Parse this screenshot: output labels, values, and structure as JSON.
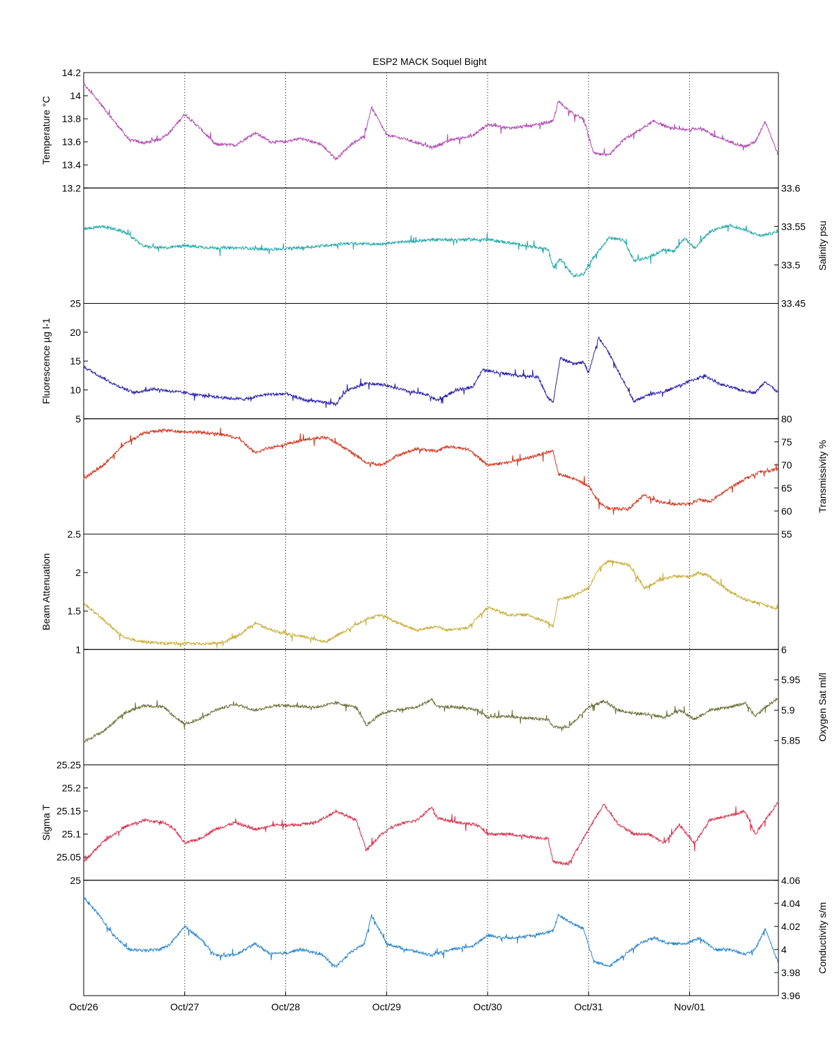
{
  "title": "ESP2 MACK  Soquel Bight",
  "x_axis": {
    "tick_labels": [
      "Oct/26",
      "Oct/27",
      "Oct/28",
      "Oct/29",
      "Oct/30",
      "Oct/31",
      "Nov/01"
    ],
    "range_days": [
      0,
      6.88
    ]
  },
  "chart_data": [
    {
      "type": "line",
      "name": "temperature",
      "color": "#B04AB0",
      "ylabel": "Temperature °C",
      "axis_side": "left",
      "ylim": [
        13.2,
        14.2
      ],
      "yticks": [
        "13.2",
        "13.4",
        "13.6",
        "13.8",
        "14",
        "14.2"
      ],
      "x": [
        0,
        0.15,
        0.3,
        0.45,
        0.6,
        0.75,
        0.85,
        1.0,
        1.15,
        1.3,
        1.5,
        1.7,
        1.85,
        2.0,
        2.15,
        2.35,
        2.5,
        2.65,
        2.78,
        2.85,
        3.0,
        3.2,
        3.45,
        3.65,
        3.85,
        4.0,
        4.2,
        4.45,
        4.65,
        4.7,
        4.85,
        4.95,
        5.05,
        5.2,
        5.35,
        5.5,
        5.65,
        5.8,
        5.95,
        6.1,
        6.25,
        6.4,
        6.55,
        6.65,
        6.75,
        6.88
      ],
      "y": [
        14.1,
        13.95,
        13.78,
        13.62,
        13.59,
        13.62,
        13.68,
        13.84,
        13.72,
        13.58,
        13.57,
        13.68,
        13.6,
        13.6,
        13.63,
        13.58,
        13.45,
        13.58,
        13.65,
        13.9,
        13.66,
        13.62,
        13.55,
        13.62,
        13.65,
        13.75,
        13.72,
        13.74,
        13.78,
        13.95,
        13.84,
        13.8,
        13.5,
        13.48,
        13.62,
        13.7,
        13.78,
        13.72,
        13.7,
        13.72,
        13.65,
        13.6,
        13.56,
        13.6,
        13.78,
        13.48
      ]
    },
    {
      "type": "line",
      "name": "salinity",
      "color": "#20AAA8",
      "ylabel": "Salinity psu",
      "axis_side": "right",
      "ylim": [
        33.45,
        33.6
      ],
      "yticks": [
        "33.45",
        "33.5",
        "33.55",
        "33.6"
      ],
      "x": [
        0,
        0.2,
        0.4,
        0.6,
        0.8,
        1.0,
        1.3,
        1.6,
        1.8,
        2.0,
        2.3,
        2.6,
        2.9,
        3.2,
        3.5,
        3.8,
        4.0,
        4.3,
        4.6,
        4.65,
        4.72,
        4.85,
        4.95,
        5.05,
        5.2,
        5.35,
        5.45,
        5.6,
        5.75,
        5.85,
        5.95,
        6.05,
        6.2,
        6.4,
        6.55,
        6.7,
        6.88
      ],
      "y": [
        33.547,
        33.55,
        33.543,
        33.524,
        33.522,
        33.525,
        33.522,
        33.522,
        33.52,
        33.521,
        33.524,
        33.528,
        33.527,
        33.53,
        33.533,
        33.533,
        33.533,
        33.527,
        33.52,
        33.496,
        33.508,
        33.486,
        33.488,
        33.51,
        33.535,
        33.532,
        33.505,
        33.51,
        33.52,
        33.518,
        33.535,
        33.522,
        33.543,
        33.552,
        33.545,
        33.538,
        33.543
      ]
    },
    {
      "type": "line",
      "name": "fluorescence",
      "color": "#2A1FA8",
      "ylabel": "Fluorescence µg l-1",
      "axis_side": "left",
      "ylim": [
        5,
        25
      ],
      "yticks": [
        "5",
        "10",
        "15",
        "20",
        "25"
      ],
      "x": [
        0,
        0.15,
        0.3,
        0.5,
        0.7,
        0.85,
        1.0,
        1.2,
        1.4,
        1.6,
        1.8,
        2.0,
        2.2,
        2.4,
        2.5,
        2.6,
        2.8,
        3.0,
        3.2,
        3.4,
        3.5,
        3.7,
        3.85,
        3.95,
        4.1,
        4.3,
        4.5,
        4.6,
        4.65,
        4.72,
        4.85,
        4.95,
        5.0,
        5.1,
        5.2,
        5.3,
        5.45,
        5.6,
        5.8,
        6.0,
        6.15,
        6.3,
        6.5,
        6.65,
        6.75,
        6.88
      ],
      "y": [
        14,
        12.5,
        11,
        9.5,
        10.2,
        9.8,
        9.5,
        9,
        8.6,
        8.4,
        9.2,
        9.3,
        8.2,
        7.8,
        7.5,
        9.8,
        11.2,
        10.8,
        9.8,
        9.2,
        8.2,
        10,
        10.5,
        13.5,
        13,
        12.5,
        12.2,
        8.5,
        8,
        15.5,
        14.5,
        14.8,
        13,
        19,
        16.5,
        13,
        8,
        9.2,
        10,
        11.5,
        12.5,
        11,
        10,
        9.5,
        11.5,
        9.5
      ]
    },
    {
      "type": "line",
      "name": "transmissivity",
      "color": "#D2361E",
      "ylabel": "Transmissivity %",
      "axis_side": "right",
      "ylim": [
        55,
        80
      ],
      "yticks": [
        "55",
        "60",
        "65",
        "70",
        "75",
        "80"
      ],
      "x": [
        0,
        0.2,
        0.4,
        0.6,
        0.8,
        1.0,
        1.2,
        1.4,
        1.55,
        1.7,
        1.8,
        2.0,
        2.2,
        2.4,
        2.6,
        2.8,
        2.95,
        3.1,
        3.3,
        3.5,
        3.6,
        3.8,
        4.0,
        4.2,
        4.4,
        4.6,
        4.65,
        4.7,
        4.85,
        5.0,
        5.1,
        5.2,
        5.4,
        5.55,
        5.7,
        5.85,
        6.0,
        6.1,
        6.2,
        6.4,
        6.55,
        6.7,
        6.88
      ],
      "y": [
        67,
        70,
        74.5,
        77,
        77.5,
        77.2,
        77,
        76.5,
        75.5,
        72.5,
        73.5,
        74.5,
        75.5,
        76,
        73.5,
        70.5,
        70,
        72,
        73.5,
        73,
        74,
        73.5,
        70,
        70.5,
        71.5,
        72.8,
        73,
        68,
        67,
        65.5,
        62,
        60.5,
        60.5,
        63.5,
        62,
        61.5,
        61.5,
        62.5,
        62,
        65,
        67,
        68.5,
        69
      ]
    },
    {
      "type": "line",
      "name": "beam_attenuation",
      "color": "#C9AE3A",
      "ylabel": "Beam Attenuation",
      "axis_side": "left",
      "ylim": [
        1,
        2.5
      ],
      "yticks": [
        "1",
        "1.5",
        "2",
        "2.5"
      ],
      "x": [
        0,
        0.2,
        0.4,
        0.6,
        0.8,
        1.0,
        1.2,
        1.4,
        1.55,
        1.7,
        1.8,
        2.0,
        2.2,
        2.4,
        2.6,
        2.8,
        2.95,
        3.1,
        3.3,
        3.5,
        3.6,
        3.8,
        4.0,
        4.2,
        4.4,
        4.6,
        4.65,
        4.7,
        4.85,
        5.0,
        5.1,
        5.2,
        5.4,
        5.55,
        5.7,
        5.85,
        6.0,
        6.1,
        6.2,
        6.4,
        6.55,
        6.7,
        6.88
      ],
      "y": [
        1.6,
        1.38,
        1.15,
        1.1,
        1.08,
        1.08,
        1.07,
        1.1,
        1.2,
        1.35,
        1.28,
        1.2,
        1.16,
        1.1,
        1.25,
        1.4,
        1.45,
        1.35,
        1.25,
        1.3,
        1.25,
        1.28,
        1.55,
        1.45,
        1.45,
        1.35,
        1.3,
        1.65,
        1.7,
        1.8,
        2.05,
        2.15,
        2.1,
        1.8,
        1.9,
        1.95,
        1.95,
        2.0,
        1.95,
        1.75,
        1.65,
        1.6,
        1.52
      ]
    },
    {
      "type": "line",
      "name": "oxygen_sat",
      "color": "#6E7038",
      "ylabel": "Oxygen Sat ml/l",
      "axis_side": "right",
      "ylim": [
        5.81,
        6
      ],
      "yticks": [
        "5.85",
        "5.9",
        "5.95",
        "6"
      ],
      "x": [
        0,
        0.2,
        0.4,
        0.6,
        0.8,
        0.9,
        1.0,
        1.15,
        1.3,
        1.5,
        1.7,
        1.9,
        2.1,
        2.3,
        2.5,
        2.7,
        2.8,
        2.95,
        3.1,
        3.3,
        3.45,
        3.5,
        3.7,
        3.9,
        4.0,
        4.2,
        4.4,
        4.6,
        4.65,
        4.8,
        5.0,
        5.15,
        5.3,
        5.45,
        5.6,
        5.75,
        5.9,
        6.05,
        6.2,
        6.4,
        6.55,
        6.65,
        6.75,
        6.88
      ],
      "y": [
        5.848,
        5.866,
        5.895,
        5.908,
        5.905,
        5.888,
        5.878,
        5.885,
        5.9,
        5.91,
        5.9,
        5.908,
        5.907,
        5.905,
        5.912,
        5.905,
        5.875,
        5.895,
        5.9,
        5.905,
        5.918,
        5.905,
        5.905,
        5.9,
        5.888,
        5.89,
        5.887,
        5.885,
        5.872,
        5.872,
        5.905,
        5.915,
        5.9,
        5.895,
        5.893,
        5.888,
        5.9,
        5.885,
        5.9,
        5.905,
        5.912,
        5.89,
        5.905,
        5.92
      ]
    },
    {
      "type": "line",
      "name": "sigma_t",
      "color": "#D8324E",
      "ylabel": "Sigma T",
      "axis_side": "left",
      "ylim": [
        25,
        25.25
      ],
      "yticks": [
        "25",
        "25.05",
        "25.1",
        "25.15",
        "25.2",
        "25.25"
      ],
      "x": [
        0,
        0.2,
        0.4,
        0.6,
        0.8,
        0.9,
        1.0,
        1.15,
        1.3,
        1.5,
        1.7,
        1.9,
        2.1,
        2.3,
        2.5,
        2.7,
        2.8,
        2.95,
        3.1,
        3.3,
        3.45,
        3.5,
        3.7,
        3.9,
        4.0,
        4.2,
        4.4,
        4.6,
        4.65,
        4.8,
        5.0,
        5.15,
        5.3,
        5.45,
        5.6,
        5.75,
        5.9,
        6.05,
        6.2,
        6.4,
        6.55,
        6.65,
        6.75,
        6.88
      ],
      "y": [
        25.04,
        25.085,
        25.115,
        25.13,
        25.125,
        25.11,
        25.08,
        25.09,
        25.11,
        25.125,
        25.11,
        25.12,
        25.12,
        25.125,
        25.15,
        25.13,
        25.065,
        25.1,
        25.12,
        25.13,
        25.16,
        25.135,
        25.125,
        25.12,
        25.1,
        25.1,
        25.095,
        25.09,
        25.04,
        25.035,
        25.11,
        25.165,
        25.12,
        25.1,
        25.1,
        25.08,
        25.12,
        25.08,
        25.13,
        25.14,
        25.15,
        25.1,
        25.13,
        25.17
      ]
    },
    {
      "type": "line",
      "name": "conductivity",
      "color": "#2A86CC",
      "ylabel": "Conductivity s/m",
      "axis_side": "right",
      "ylim": [
        3.96,
        4.06
      ],
      "yticks": [
        "3.96",
        "3.98",
        "4",
        "4.02",
        "4.04",
        "4.06"
      ],
      "x": [
        0,
        0.15,
        0.3,
        0.45,
        0.6,
        0.75,
        0.85,
        1.0,
        1.15,
        1.3,
        1.5,
        1.7,
        1.85,
        2.0,
        2.15,
        2.35,
        2.5,
        2.65,
        2.78,
        2.85,
        3.0,
        3.2,
        3.45,
        3.65,
        3.85,
        4.0,
        4.2,
        4.45,
        4.65,
        4.7,
        4.85,
        4.95,
        5.05,
        5.2,
        5.35,
        5.5,
        5.65,
        5.8,
        5.95,
        6.1,
        6.25,
        6.4,
        6.55,
        6.65,
        6.75,
        6.88
      ],
      "y": [
        4.045,
        4.03,
        4.012,
        4.0,
        3.999,
        4.0,
        4.004,
        4.02,
        4.01,
        3.995,
        3.995,
        4.005,
        3.996,
        3.997,
        4.0,
        3.996,
        3.985,
        3.998,
        4.005,
        4.03,
        4.005,
        4.0,
        3.995,
        4.0,
        4.003,
        4.012,
        4.01,
        4.012,
        4.016,
        4.03,
        4.022,
        4.018,
        3.99,
        3.985,
        3.995,
        4.005,
        4.01,
        4.005,
        4.005,
        4.01,
        4.0,
        4.0,
        3.996,
        4.0,
        4.018,
        3.988
      ]
    }
  ]
}
